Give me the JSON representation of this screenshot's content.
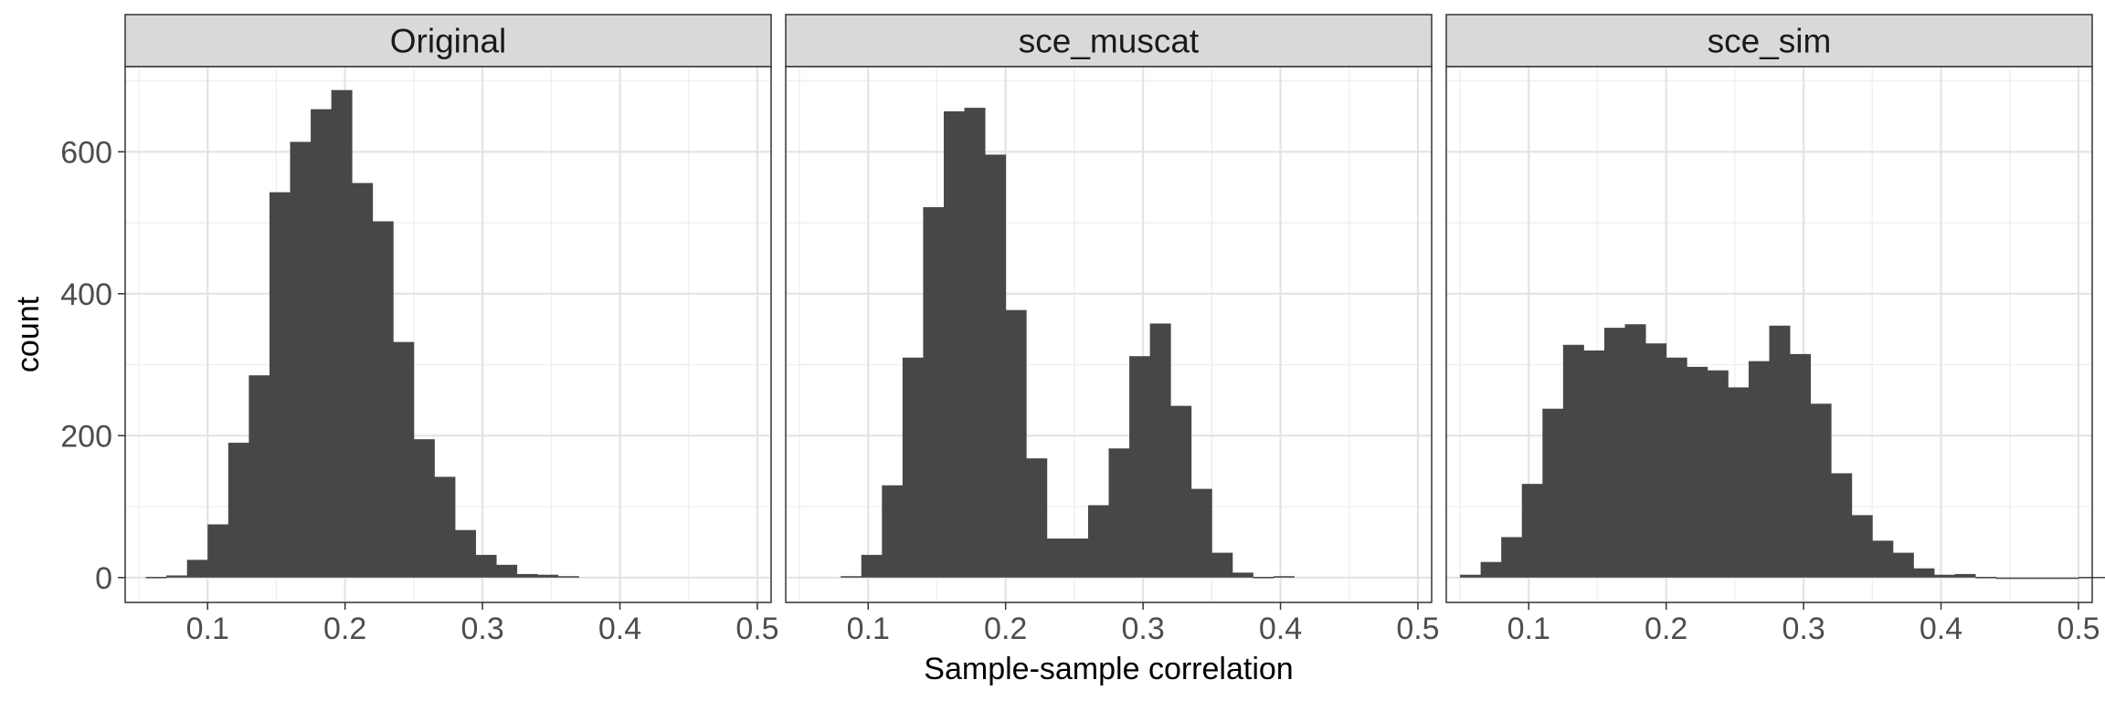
{
  "chart_data": {
    "type": "histogram",
    "xlabel": "Sample-sample correlation",
    "ylabel": "count",
    "xlim": [
      0.04,
      0.51
    ],
    "ylim": [
      -35,
      720
    ],
    "x_ticks": [
      0.1,
      0.2,
      0.3,
      0.4,
      0.5
    ],
    "x_tick_labels": [
      "0.1",
      "0.2",
      "0.3",
      "0.4",
      "0.5"
    ],
    "y_ticks": [
      0,
      200,
      400,
      600
    ],
    "y_tick_labels": [
      "0",
      "200",
      "400",
      "600"
    ],
    "grid": true,
    "bar_color": "#474747",
    "panels": [
      {
        "name": "Original",
        "bin_start": 0.055,
        "bin_width": 0.015,
        "counts": [
          1,
          3,
          25,
          75,
          190,
          285,
          543,
          614,
          660,
          687,
          556,
          502,
          332,
          195,
          142,
          67,
          32,
          18,
          5,
          4,
          2
        ]
      },
      {
        "name": "sce_muscat",
        "bin_start": 0.08,
        "bin_width": 0.015,
        "counts": [
          2,
          32,
          130,
          310,
          522,
          657,
          662,
          596,
          377,
          168,
          55,
          55,
          102,
          182,
          312,
          358,
          242,
          125,
          35,
          7,
          1,
          2
        ]
      },
      {
        "name": "sce_sim",
        "bin_start": 0.05,
        "bin_width": 0.015,
        "counts": [
          4,
          22,
          57,
          132,
          238,
          328,
          320,
          352,
          357,
          330,
          310,
          297,
          292,
          268,
          305,
          355,
          315,
          245,
          147,
          88,
          52,
          35,
          13,
          4,
          5,
          1,
          0,
          0,
          0,
          0,
          1,
          1
        ]
      }
    ]
  }
}
